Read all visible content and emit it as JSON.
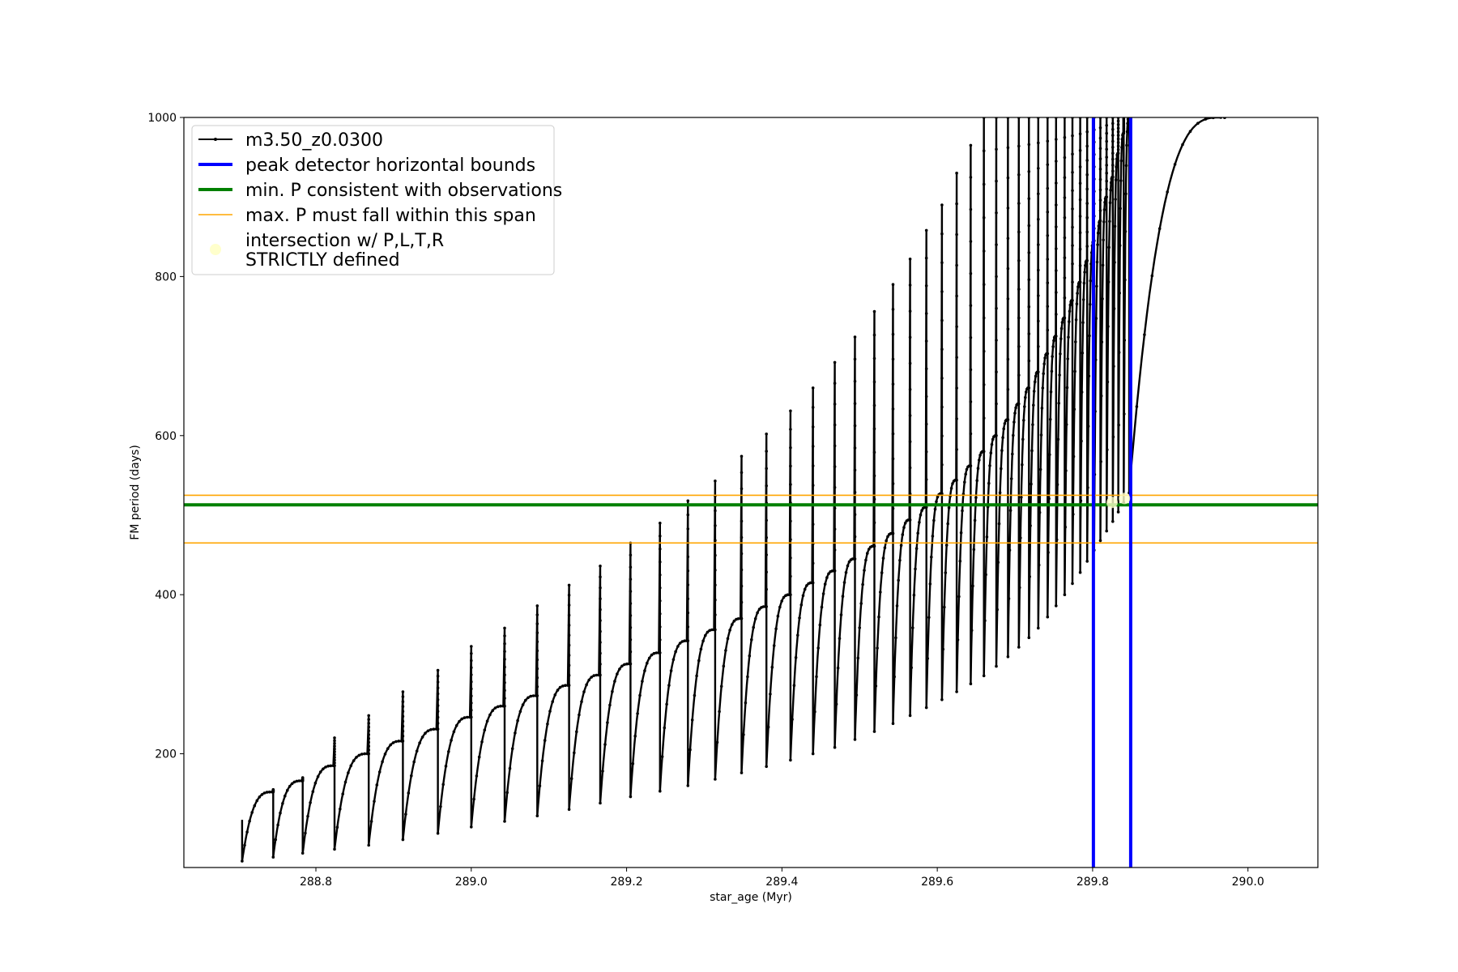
{
  "chart_data": {
    "type": "line",
    "title": "",
    "xlabel": "star_age (Myr)",
    "ylabel": "FM period (days)",
    "xlim": [
      288.63,
      290.09
    ],
    "ylim": [
      57,
      1000
    ],
    "grid": false,
    "legend_placement": "upper-left",
    "x_ticks": [
      288.8,
      289.0,
      289.2,
      289.4,
      289.6,
      289.8,
      290.0
    ],
    "x_tick_labels": [
      "288.8",
      "289.0",
      "289.2",
      "289.4",
      "289.6",
      "289.8",
      "290.0"
    ],
    "y_ticks": [
      200,
      400,
      600,
      800,
      1000
    ],
    "y_tick_labels": [
      "200",
      "400",
      "600",
      "800",
      "1000"
    ],
    "series": [
      {
        "name": "m3.50_z0.0300",
        "kind": "pulse-track",
        "color": "#000000",
        "x_start": 288.705,
        "x_end": 289.97,
        "cycle_starts": [
          288.705,
          288.745,
          288.783,
          288.824,
          288.868,
          288.912,
          288.957,
          289.0,
          289.043,
          289.085,
          289.126,
          289.166,
          289.205,
          289.243,
          289.279,
          289.314,
          289.348,
          289.38,
          289.411,
          289.44,
          289.468,
          289.494,
          289.519,
          289.543,
          289.565,
          289.586,
          289.606,
          289.625,
          289.643,
          289.66,
          289.676,
          289.691,
          289.705,
          289.718,
          289.73,
          289.742,
          289.753,
          289.764,
          289.774,
          289.784,
          289.793,
          289.802,
          289.81,
          289.818,
          289.826,
          289.833,
          289.84,
          289.847
        ],
        "cycle_peaks": [
          152,
          166,
          185,
          200,
          216,
          231,
          246,
          260,
          273,
          286,
          299,
          313,
          327,
          342,
          356,
          370,
          385,
          400,
          415,
          430,
          445,
          461,
          477,
          494,
          510,
          527,
          544,
          562,
          580,
          600,
          620,
          640,
          660,
          680,
          703,
          725,
          748,
          770,
          793,
          820,
          845,
          870,
          900,
          925,
          955,
          980,
          1000,
          1000
        ],
        "cycle_minima": [
          65,
          70,
          75,
          80,
          85,
          92,
          100,
          108,
          115,
          122,
          130,
          138,
          146,
          153,
          160,
          168,
          176,
          184,
          192,
          200,
          208,
          218,
          228,
          238,
          248,
          258,
          268,
          278,
          288,
          298,
          310,
          322,
          334,
          346,
          358,
          372,
          386,
          400,
          414,
          428,
          442,
          456,
          468,
          480,
          492,
          504,
          516,
          528
        ],
        "spike_tops": [
          117,
          155,
          170,
          220,
          248,
          278,
          305,
          335,
          358,
          386,
          412,
          436,
          465,
          490,
          518,
          543,
          574,
          602,
          631,
          660,
          692,
          724,
          756,
          790,
          822,
          858,
          890,
          930,
          965,
          1000,
          1000,
          1000,
          1000,
          1000,
          1000,
          1000,
          1000,
          1000,
          1000,
          1000,
          1000,
          1000,
          1000,
          1000,
          1000,
          1000,
          1000,
          1000
        ]
      },
      {
        "name": "peak detector horizontal bounds",
        "kind": "vline",
        "color": "#0000ff",
        "x": [
          289.801,
          289.849
        ]
      },
      {
        "name": "min. P consistent with observations",
        "kind": "hline",
        "color": "#008000",
        "y": 513
      },
      {
        "name": "max. P must fall within this span",
        "kind": "hline",
        "color": "#ffa500",
        "y": [
          465,
          525
        ]
      },
      {
        "name": "intersection w/ P,L,T,R\nSTRICTLY defined",
        "kind": "scatter",
        "color": "#ffffcc",
        "points": [
          [
            289.825,
            516
          ],
          [
            289.841,
            521
          ]
        ]
      }
    ],
    "legend": [
      {
        "label_lines": [
          "m3.50_z0.0300"
        ],
        "style": "line-marker",
        "color": "#000000"
      },
      {
        "label_lines": [
          "peak detector horizontal bounds"
        ],
        "style": "thick-line",
        "color": "#0000ff"
      },
      {
        "label_lines": [
          "min. P consistent with observations"
        ],
        "style": "thick-line",
        "color": "#008000"
      },
      {
        "label_lines": [
          "max. P must fall within this span"
        ],
        "style": "thin-line",
        "color": "#ffa500"
      },
      {
        "label_lines": [
          "intersection w/ P,L,T,R",
          "STRICTLY defined"
        ],
        "style": "dot",
        "color": "#ffffcc"
      }
    ]
  }
}
